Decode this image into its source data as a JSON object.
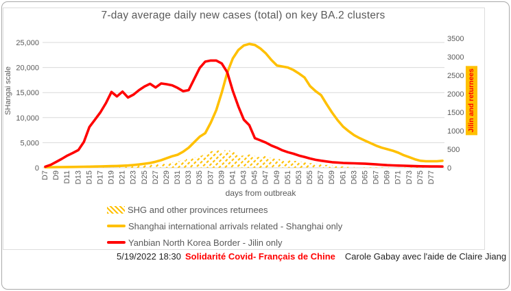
{
  "colors": {
    "series_yellow": "#FFC000",
    "series_red": "#FF0000",
    "grid": "#D9D9D9",
    "axis_text": "#595959",
    "footer_text": "#1F1F1F",
    "footer_red": "#FF0000",
    "right_label_bg": "#FFC000",
    "right_label_text": "#FF0000"
  },
  "footer": {
    "timestamp": "5/19/2022 18:30",
    "org": "Solidarité Covid- Français de Chine",
    "credit": "Carole Gabay avec l'aide de Claire Jiang"
  },
  "chart_data": {
    "type": "line",
    "title": "7-day average daily new cases (total) on key BA.2 clusters",
    "x_label": "days from outbreak",
    "grid": true,
    "legend_position": "bottom-left",
    "y_left": {
      "label": "SHangai scale",
      "min": 0,
      "max": 25000,
      "step": 5000,
      "tick_labels": [
        "0",
        "5,000",
        "10,000",
        "15,000",
        "20,000",
        "25,000"
      ]
    },
    "y_right": {
      "label": "Jilin and returnees",
      "min": 0,
      "max": 3500,
      "step": 500,
      "tick_labels": [
        "0",
        "500",
        "1000",
        "1500",
        "2000",
        "2500",
        "3000",
        "3500"
      ]
    },
    "x_tick_labels": [
      "D7",
      "D9",
      "D11",
      "D13",
      "D15",
      "D17",
      "D19",
      "D21",
      "D23",
      "D25",
      "D27",
      "D29",
      "D31",
      "D33",
      "D35",
      "D37",
      "D39",
      "D41",
      "D43",
      "D45",
      "D47",
      "D49",
      "D51",
      "D53",
      "D55",
      "D57",
      "D59",
      "D61",
      "D63",
      "D65",
      "D67",
      "D69",
      "D71",
      "D73",
      "D75",
      "D77"
    ],
    "days": [
      7,
      8,
      9,
      10,
      11,
      12,
      13,
      14,
      15,
      16,
      17,
      18,
      19,
      20,
      21,
      22,
      23,
      24,
      25,
      26,
      27,
      28,
      29,
      30,
      31,
      32,
      33,
      34,
      35,
      36,
      37,
      38,
      39,
      40,
      41,
      42,
      43,
      44,
      45,
      46,
      47,
      48,
      49,
      50,
      51,
      52,
      53,
      54,
      55,
      56,
      57,
      58,
      59,
      60,
      61,
      62,
      63,
      64,
      65,
      66,
      67,
      68,
      69,
      70,
      71,
      72,
      73,
      74,
      75,
      76,
      77,
      78,
      79
    ],
    "series": [
      {
        "name": "SHG and other provinces returnees",
        "axis": "right",
        "style": "hatch-area",
        "color": "#FFC000",
        "values": [
          0,
          0,
          0,
          0,
          0,
          0,
          0,
          0,
          0,
          5,
          15,
          25,
          35,
          40,
          50,
          55,
          65,
          75,
          85,
          95,
          105,
          115,
          130,
          150,
          175,
          200,
          240,
          280,
          330,
          380,
          450,
          470,
          420,
          480,
          430,
          360,
          330,
          360,
          320,
          290,
          320,
          270,
          240,
          220,
          200,
          185,
          165,
          145,
          125,
          105,
          90,
          75,
          60,
          45,
          35,
          25,
          20,
          18,
          15,
          12,
          10,
          10,
          10,
          10,
          10,
          10,
          10,
          15,
          30,
          45,
          55,
          40,
          30
        ]
      },
      {
        "name": "Shanghai international arrivals related - Shanghai only",
        "axis": "left",
        "style": "line",
        "color": "#FFC000",
        "values": [
          100,
          110,
          120,
          130,
          150,
          160,
          180,
          200,
          220,
          250,
          280,
          300,
          330,
          360,
          400,
          450,
          550,
          650,
          800,
          950,
          1200,
          1500,
          1900,
          2300,
          2600,
          3200,
          4000,
          5100,
          6200,
          6900,
          9000,
          11500,
          15000,
          19000,
          21800,
          23500,
          24400,
          24700,
          24500,
          23800,
          22800,
          21500,
          20400,
          20200,
          20000,
          19500,
          18800,
          18000,
          16300,
          15300,
          14500,
          12700,
          11000,
          9500,
          8200,
          7300,
          6500,
          5900,
          5400,
          4900,
          4400,
          4000,
          3700,
          3400,
          3000,
          2500,
          2100,
          1700,
          1400,
          1300,
          1300,
          1300,
          1400
        ]
      },
      {
        "name": "Yanbian North Korea Border - Jilin only",
        "axis": "right",
        "style": "line",
        "color": "#FF0000",
        "values": [
          30,
          80,
          160,
          240,
          330,
          400,
          480,
          700,
          1100,
          1300,
          1500,
          1750,
          2050,
          1930,
          2060,
          1900,
          1980,
          2100,
          2200,
          2270,
          2170,
          2280,
          2260,
          2230,
          2160,
          2070,
          2100,
          2400,
          2700,
          2870,
          2900,
          2900,
          2820,
          2580,
          2080,
          1660,
          1300,
          1150,
          800,
          740,
          680,
          600,
          540,
          470,
          420,
          380,
          330,
          290,
          250,
          215,
          190,
          170,
          150,
          140,
          130,
          125,
          120,
          115,
          110,
          100,
          90,
          80,
          70,
          65,
          60,
          55,
          50,
          45,
          40,
          38,
          36,
          35,
          34
        ]
      }
    ]
  }
}
